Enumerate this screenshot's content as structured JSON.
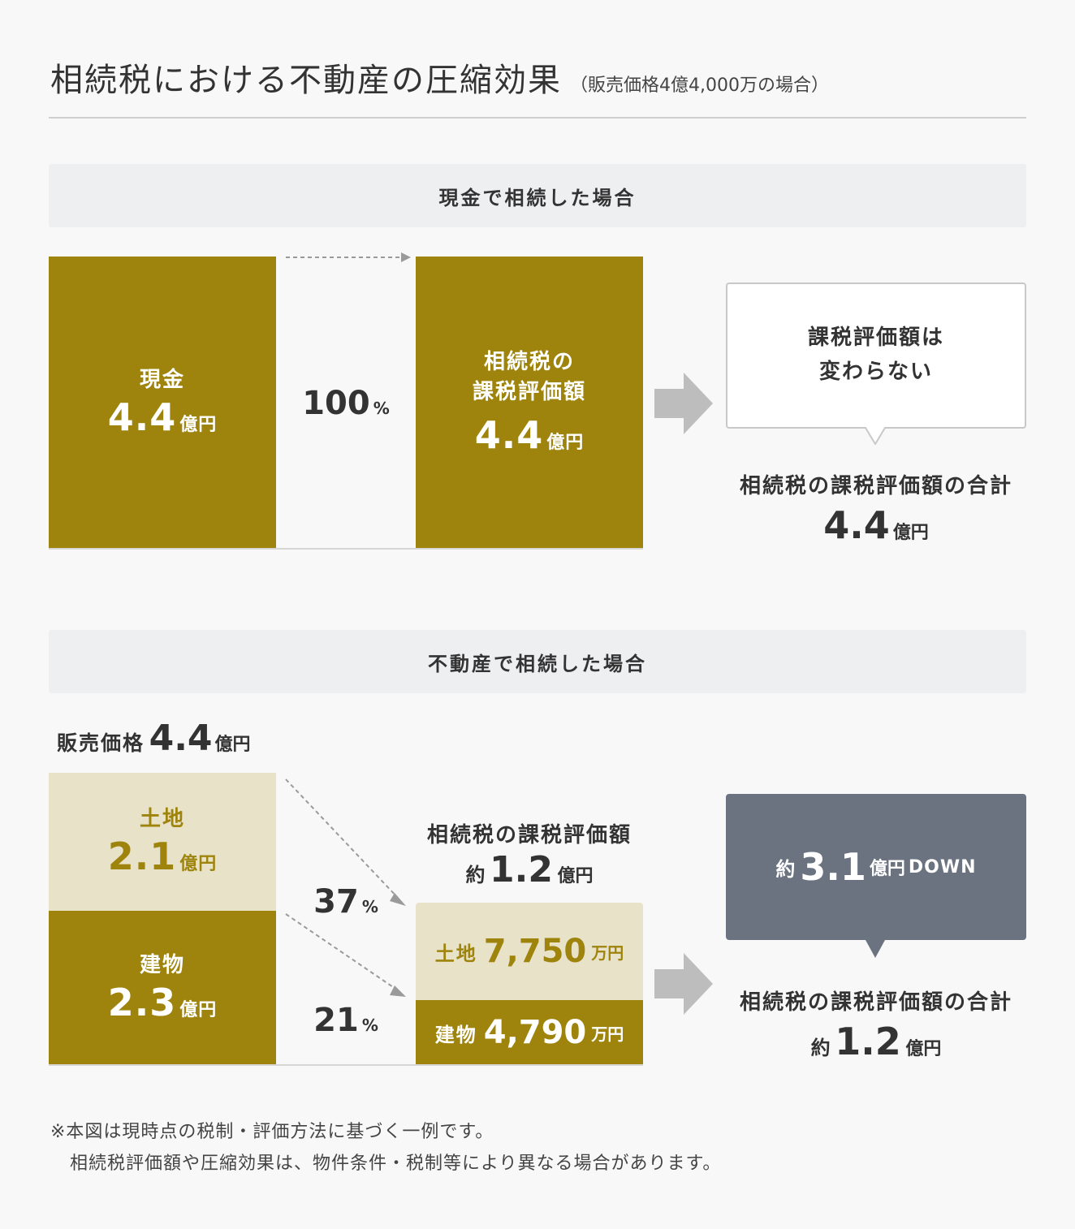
{
  "title": {
    "main": "相続税における不動産の圧縮効果",
    "sub": "（販売価格4億4,000万の場合）"
  },
  "cash_section": {
    "heading": "現金で相続した場合",
    "cash_box": {
      "label": "現金",
      "value": "4.4",
      "unit": "億円"
    },
    "percent": {
      "value": "100",
      "unit": "%"
    },
    "taxable_box": {
      "label_line1": "相続税の",
      "label_line2": "課税評価額",
      "value": "4.4",
      "unit": "億円"
    },
    "bubble": {
      "line1": "課税評価額は",
      "line2": "変わらない"
    },
    "total": {
      "label": "相続税の課税評価額の合計",
      "value": "4.4",
      "unit": "億円"
    }
  },
  "realestate_section": {
    "heading": "不動産で相続した場合",
    "sale_price": {
      "label": "販売価格",
      "value": "4.4",
      "unit": "億円"
    },
    "land_box": {
      "label": "土地",
      "value": "2.1",
      "unit": "億円"
    },
    "building_box": {
      "label": "建物",
      "value": "2.3",
      "unit": "億円"
    },
    "land_percent": {
      "value": "37",
      "unit": "%"
    },
    "building_percent": {
      "value": "21",
      "unit": "%"
    },
    "taxable_head": {
      "label": "相続税の課税評価額",
      "prefix": "約",
      "value": "1.2",
      "unit": "億円"
    },
    "land_result": {
      "label": "土地",
      "value": "7,750",
      "unit": "万円"
    },
    "building_result": {
      "label": "建物",
      "value": "4,790",
      "unit": "万円"
    },
    "bubble": {
      "prefix": "約",
      "value": "3.1",
      "unit": "億円",
      "suffix": "DOWN"
    },
    "total": {
      "label": "相続税の課税評価額の合計",
      "prefix": "約",
      "value": "1.2",
      "unit": "億円"
    }
  },
  "notes": {
    "line1": "※本図は現時点の税制・評価方法に基づく一例です。",
    "line2": "相続税評価額や圧縮効果は、物件条件・税制等により異なる場合があります。"
  },
  "colors": {
    "gold": "#9e840d",
    "beige": "#e8e2c9",
    "slate": "#6b7280",
    "arrow_gray": "#bdbdbd"
  }
}
